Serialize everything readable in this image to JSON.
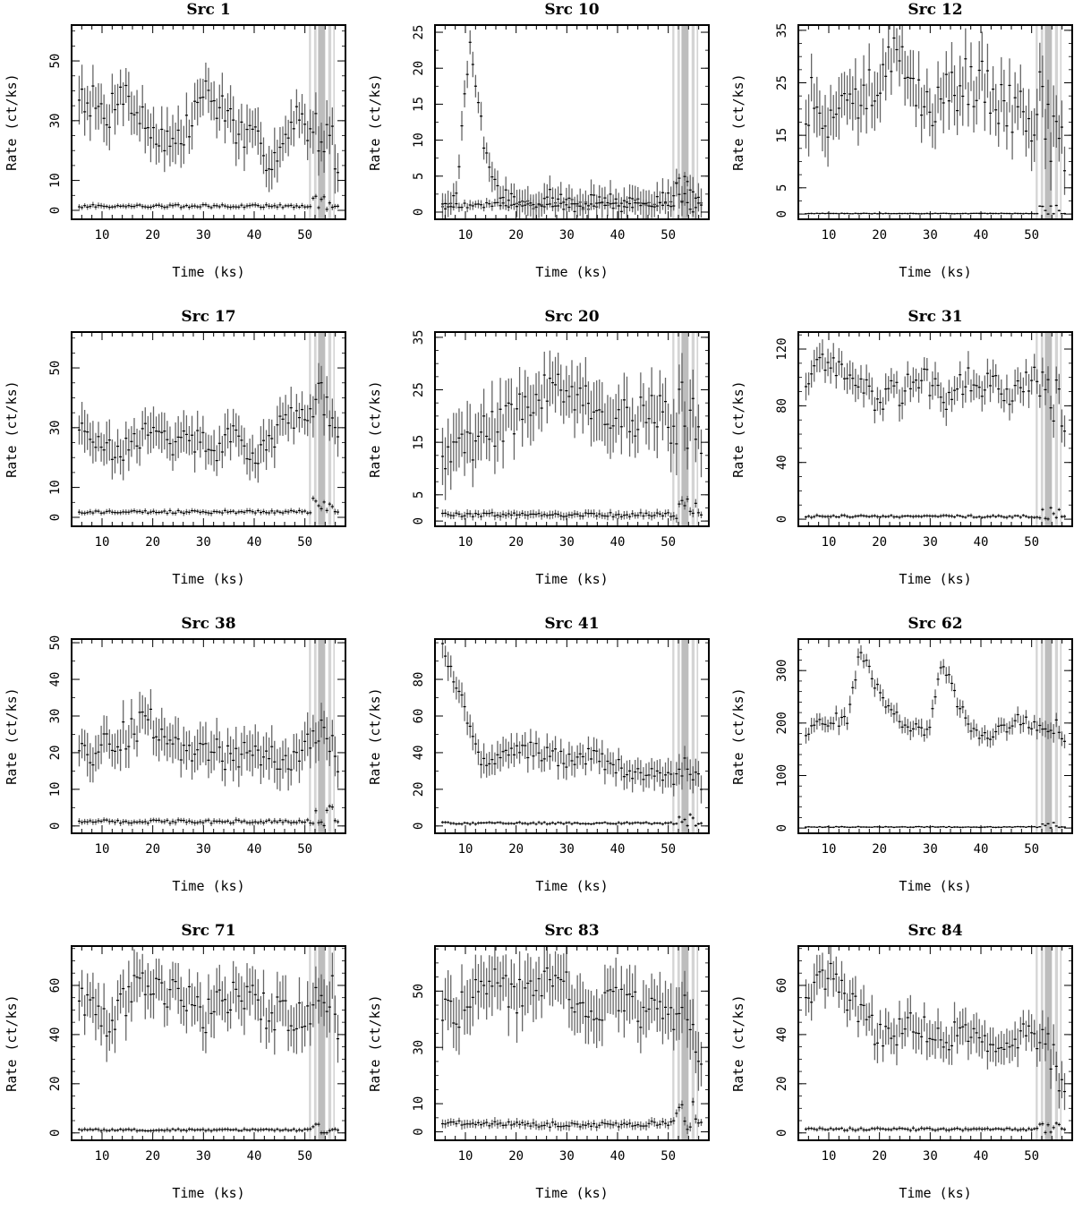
{
  "figure": {
    "layout": "4 rows x 3 columns",
    "colors": {
      "axes": "#000000",
      "errorbar": "#666666",
      "point": "#000000",
      "exclusion_band": "#d4d4d4",
      "exclusion_band_dark": "#bdbdbd"
    }
  },
  "chart_data": [
    {
      "type": "scatter",
      "title": "Src 1",
      "xlabel": "Time (ks)",
      "ylabel": "Rate (ct/ks)",
      "xlim": [
        4,
        58
      ],
      "ylim": [
        -3,
        62
      ],
      "yticks": [
        0,
        10,
        30,
        50
      ],
      "xticks": [
        10,
        20,
        30,
        40,
        50
      ],
      "grid": false,
      "series": [
        {
          "role": "source",
          "base": [
            40,
            36,
            30,
            42,
            34,
            28,
            25,
            22,
            27,
            40,
            36,
            32,
            24,
            22,
            18,
            22,
            30,
            25,
            23,
            17
          ],
          "noise": 6,
          "err": 7
        },
        {
          "role": "background",
          "base": [
            1.4,
            1.4,
            1.4,
            1.4
          ],
          "noise": 0.5,
          "err": 0.8
        }
      ],
      "flare_end": 3,
      "exclusion_bands": [
        [
          50.8,
          51.2
        ],
        [
          51.8,
          52.3
        ],
        [
          52.6,
          54.0
        ],
        [
          54.6,
          55.2
        ],
        [
          55.6,
          55.9
        ]
      ]
    },
    {
      "type": "scatter",
      "title": "Src 10",
      "xlabel": "Time (ks)",
      "ylabel": "Rate (ct/ks)",
      "xlim": [
        4,
        58
      ],
      "ylim": [
        -1,
        26
      ],
      "yticks": [
        0,
        5,
        10,
        15,
        20,
        25
      ],
      "xticks": [
        10,
        20,
        30,
        40,
        50
      ],
      "grid": false,
      "series": [
        {
          "role": "source",
          "base": [
            0.5,
            2.0,
            24.0,
            10.0,
            3.0,
            2.0,
            1.0,
            1.5,
            2.5,
            1.0,
            0.8,
            1.5,
            2.0,
            1.0,
            1.5,
            1.5,
            2.0,
            2.0,
            2.0,
            2.0
          ],
          "noise": 1.0,
          "err": 1.8
        },
        {
          "role": "background",
          "base": [
            1.0,
            1.0,
            1.0,
            1.0
          ],
          "noise": 0.4,
          "err": 0.6
        }
      ],
      "flare_end": 3,
      "exclusion_bands": [
        [
          50.8,
          51.2
        ],
        [
          51.8,
          52.3
        ],
        [
          52.6,
          54.0
        ],
        [
          54.6,
          55.2
        ],
        [
          55.6,
          55.9
        ]
      ]
    },
    {
      "type": "scatter",
      "title": "Src 12",
      "xlabel": "Time (ks)",
      "ylabel": "Rate (ct/ks)",
      "xlim": [
        4,
        58
      ],
      "ylim": [
        -1,
        36
      ],
      "yticks": [
        0,
        5,
        15,
        25,
        35
      ],
      "xticks": [
        10,
        20,
        30,
        40,
        50
      ],
      "grid": false,
      "series": [
        {
          "role": "source",
          "base": [
            22,
            20,
            18,
            20,
            22,
            25,
            30,
            28,
            22,
            20,
            22,
            24,
            25,
            26,
            22,
            20,
            20,
            18,
            14,
            12
          ],
          "noise": 5,
          "err": 5
        },
        {
          "role": "background",
          "base": [
            0.1,
            0.1,
            0.1,
            0.1
          ],
          "noise": 0.05,
          "err": 0.15
        }
      ],
      "flare_end": 1.2,
      "exclusion_bands": [
        [
          50.8,
          51.2
        ],
        [
          51.8,
          52.3
        ],
        [
          52.6,
          54.0
        ],
        [
          54.6,
          55.2
        ],
        [
          55.6,
          55.9
        ]
      ]
    },
    {
      "type": "scatter",
      "title": "Src 17",
      "xlabel": "Time (ks)",
      "ylabel": "Rate (ct/ks)",
      "xlim": [
        4,
        58
      ],
      "ylim": [
        -3,
        62
      ],
      "yticks": [
        0,
        10,
        30,
        50
      ],
      "xticks": [
        10,
        20,
        30,
        40,
        50
      ],
      "grid": false,
      "series": [
        {
          "role": "source",
          "base": [
            30,
            28,
            24,
            22,
            25,
            28,
            27,
            24,
            26,
            25,
            22,
            28,
            24,
            20,
            25,
            32,
            34,
            36,
            38,
            30
          ],
          "noise": 4,
          "err": 6
        },
        {
          "role": "background",
          "base": [
            1.8,
            1.8,
            1.8,
            1.8
          ],
          "noise": 0.5,
          "err": 0.8
        }
      ],
      "flare_end": 3,
      "exclusion_bands": [
        [
          50.8,
          51.2
        ],
        [
          51.8,
          52.3
        ],
        [
          52.6,
          54.0
        ],
        [
          54.6,
          55.2
        ],
        [
          55.6,
          55.9
        ]
      ]
    },
    {
      "type": "scatter",
      "title": "Src 20",
      "xlabel": "Time (ks)",
      "ylabel": "Rate (ct/ks)",
      "xlim": [
        4,
        58
      ],
      "ylim": [
        -1,
        36
      ],
      "yticks": [
        0,
        5,
        15,
        25,
        35
      ],
      "xticks": [
        10,
        20,
        30,
        40,
        50
      ],
      "grid": false,
      "series": [
        {
          "role": "source",
          "base": [
            10,
            12,
            15,
            17,
            18,
            20,
            22,
            24,
            26,
            25,
            24,
            22,
            20,
            20,
            20,
            20,
            20,
            18,
            18,
            16
          ],
          "noise": 4,
          "err": 5
        },
        {
          "role": "background",
          "base": [
            1.2,
            1.2,
            1.2,
            1.2
          ],
          "noise": 0.4,
          "err": 0.7
        }
      ],
      "flare_end": 2,
      "exclusion_bands": [
        [
          50.8,
          51.2
        ],
        [
          51.8,
          52.3
        ],
        [
          52.6,
          54.0
        ],
        [
          54.6,
          55.2
        ],
        [
          55.6,
          55.9
        ]
      ]
    },
    {
      "type": "scatter",
      "title": "Src 31",
      "xlabel": "Time (ks)",
      "ylabel": "Rate (ct/ks)",
      "xlim": [
        4,
        58
      ],
      "ylim": [
        -5,
        132
      ],
      "yticks": [
        0,
        40,
        80,
        120
      ],
      "xticks": [
        10,
        20,
        30,
        40,
        50
      ],
      "grid": false,
      "series": [
        {
          "role": "source",
          "base": [
            100,
            112,
            108,
            100,
            92,
            85,
            88,
            90,
            95,
            98,
            85,
            90,
            100,
            95,
            92,
            90,
            95,
            98,
            90,
            70
          ],
          "noise": 10,
          "err": 10
        },
        {
          "role": "background",
          "base": [
            2,
            2,
            2,
            2
          ],
          "noise": 0.8,
          "err": 1.2
        }
      ],
      "flare_end": 4,
      "exclusion_bands": [
        [
          50.8,
          51.2
        ],
        [
          51.8,
          52.3
        ],
        [
          52.6,
          54.0
        ],
        [
          54.6,
          55.2
        ],
        [
          55.6,
          55.9
        ]
      ]
    },
    {
      "type": "scatter",
      "title": "Src 38",
      "xlabel": "Time (ks)",
      "ylabel": "Rate (ct/ks)",
      "xlim": [
        4,
        58
      ],
      "ylim": [
        -2,
        51
      ],
      "yticks": [
        0,
        10,
        20,
        30,
        40,
        50
      ],
      "xticks": [
        10,
        20,
        30,
        40,
        50
      ],
      "grid": false,
      "series": [
        {
          "role": "source",
          "base": [
            20,
            18,
            22,
            24,
            26,
            30,
            25,
            22,
            20,
            22,
            20,
            18,
            20,
            22,
            18,
            16,
            20,
            22,
            24,
            18
          ],
          "noise": 4,
          "err": 5
        },
        {
          "role": "background",
          "base": [
            1.2,
            1.2,
            1.2,
            1.2
          ],
          "noise": 0.5,
          "err": 0.7
        }
      ],
      "flare_end": 3,
      "exclusion_bands": [
        [
          50.8,
          51.2
        ],
        [
          51.8,
          52.3
        ],
        [
          52.6,
          54.0
        ],
        [
          54.6,
          55.2
        ],
        [
          55.6,
          55.9
        ]
      ]
    },
    {
      "type": "scatter",
      "title": "Src 41",
      "xlabel": "Time (ks)",
      "ylabel": "Rate (ct/ks)",
      "xlim": [
        4,
        58
      ],
      "ylim": [
        -4,
        102
      ],
      "yticks": [
        0,
        20,
        40,
        60,
        80
      ],
      "xticks": [
        10,
        20,
        30,
        40,
        50
      ],
      "grid": false,
      "series": [
        {
          "role": "source",
          "base": [
            95,
            80,
            50,
            35,
            35,
            40,
            42,
            40,
            38,
            36,
            38,
            38,
            35,
            32,
            30,
            28,
            26,
            24,
            28,
            24
          ],
          "noise": 5,
          "err": 7
        },
        {
          "role": "background",
          "base": [
            1.5,
            1.5,
            1.5,
            1.5
          ],
          "noise": 0.5,
          "err": 0.8
        }
      ],
      "flare_end": 4,
      "exclusion_bands": [
        [
          50.8,
          51.2
        ],
        [
          51.8,
          52.3
        ],
        [
          52.6,
          54.0
        ],
        [
          54.6,
          55.2
        ],
        [
          55.6,
          55.9
        ]
      ]
    },
    {
      "type": "scatter",
      "title": "Src 62",
      "xlabel": "Time (ks)",
      "ylabel": "Rate (ct/ks)",
      "xlim": [
        4,
        58
      ],
      "ylim": [
        -10,
        360
      ],
      "yticks": [
        0,
        100,
        200,
        300
      ],
      "xticks": [
        10,
        20,
        30,
        40,
        50
      ],
      "grid": false,
      "series": [
        {
          "role": "source",
          "base": [
            180,
            200,
            210,
            200,
            340,
            280,
            230,
            200,
            190,
            175,
            320,
            250,
            190,
            180,
            180,
            200,
            210,
            190,
            180,
            175
          ],
          "noise": 12,
          "err": 15
        },
        {
          "role": "background",
          "base": [
            2,
            2,
            2,
            2
          ],
          "noise": 0.8,
          "err": 1.5
        }
      ],
      "flare_end": 6,
      "exclusion_bands": [
        [
          50.8,
          51.2
        ],
        [
          51.8,
          52.3
        ],
        [
          52.6,
          54.0
        ],
        [
          54.6,
          55.2
        ],
        [
          55.6,
          55.9
        ]
      ]
    },
    {
      "type": "scatter",
      "title": "Src 71",
      "xlabel": "Time (ks)",
      "ylabel": "Rate (ct/ks)",
      "xlim": [
        4,
        58
      ],
      "ylim": [
        -3,
        76
      ],
      "yticks": [
        0,
        20,
        40,
        60
      ],
      "xticks": [
        10,
        20,
        30,
        40,
        50
      ],
      "grid": false,
      "series": [
        {
          "role": "source",
          "base": [
            50,
            55,
            45,
            50,
            58,
            62,
            58,
            55,
            52,
            48,
            50,
            55,
            58,
            52,
            50,
            48,
            45,
            48,
            50,
            45
          ],
          "noise": 8,
          "err": 9
        },
        {
          "role": "background",
          "base": [
            1.2,
            1.2,
            1.2,
            1.2
          ],
          "noise": 0.4,
          "err": 0.8
        }
      ],
      "flare_end": 3,
      "exclusion_bands": [
        [
          50.8,
          51.2
        ],
        [
          51.8,
          52.3
        ],
        [
          52.6,
          54.0
        ],
        [
          54.6,
          55.2
        ],
        [
          55.6,
          55.9
        ]
      ]
    },
    {
      "type": "scatter",
      "title": "Src 83",
      "xlabel": "Time (ks)",
      "ylabel": "Rate (ct/ks)",
      "xlim": [
        4,
        58
      ],
      "ylim": [
        -3,
        66
      ],
      "yticks": [
        0,
        10,
        30,
        50
      ],
      "xticks": [
        10,
        20,
        30,
        40,
        50
      ],
      "grid": false,
      "series": [
        {
          "role": "source",
          "base": [
            45,
            42,
            48,
            52,
            55,
            50,
            48,
            52,
            58,
            55,
            45,
            42,
            45,
            48,
            44,
            42,
            45,
            40,
            38,
            30
          ],
          "noise": 7,
          "err": 9
        },
        {
          "role": "background",
          "base": [
            3.5,
            2.5,
            2.5,
            3.5
          ],
          "noise": 0.9,
          "err": 1.4
        }
      ],
      "flare_end": 6,
      "exclusion_bands": [
        [
          50.8,
          51.2
        ],
        [
          51.8,
          52.3
        ],
        [
          52.6,
          54.0
        ],
        [
          54.6,
          55.2
        ],
        [
          55.6,
          55.9
        ]
      ]
    },
    {
      "type": "scatter",
      "title": "Src 84",
      "xlabel": "Time (ks)",
      "ylabel": "Rate (ct/ks)",
      "xlim": [
        4,
        58
      ],
      "ylim": [
        -3,
        76
      ],
      "yticks": [
        0,
        20,
        40,
        60
      ],
      "xticks": [
        10,
        20,
        30,
        40,
        50
      ],
      "grid": false,
      "series": [
        {
          "role": "source",
          "base": [
            55,
            60,
            65,
            55,
            48,
            42,
            40,
            42,
            45,
            42,
            38,
            40,
            38,
            36,
            35,
            38,
            40,
            38,
            25,
            22
          ],
          "noise": 6,
          "err": 7
        },
        {
          "role": "background",
          "base": [
            1.5,
            1.5,
            1.5,
            1.5
          ],
          "noise": 0.5,
          "err": 0.8
        }
      ],
      "flare_end": 3,
      "exclusion_bands": [
        [
          50.8,
          51.2
        ],
        [
          51.8,
          52.3
        ],
        [
          52.6,
          54.0
        ],
        [
          54.6,
          55.2
        ],
        [
          55.6,
          55.9
        ]
      ]
    }
  ]
}
